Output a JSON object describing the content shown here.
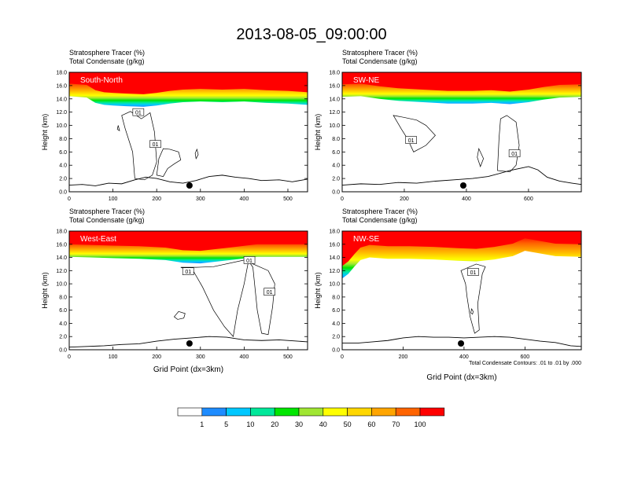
{
  "figure_title": "2013-08-05_09:00:00",
  "colorbar": {
    "colors": [
      "#ffffff",
      "#1e8cff",
      "#00c8ff",
      "#00e89a",
      "#00e600",
      "#a0e632",
      "#ffff00",
      "#ffd700",
      "#ffa500",
      "#ff6400",
      "#ff0000"
    ],
    "labels": [
      "1",
      "5",
      "10",
      "20",
      "30",
      "40",
      "50",
      "60",
      "70",
      "100"
    ]
  },
  "chart_data": [
    {
      "type": "heatmap",
      "id": "south-north",
      "title_line1": "Stratosphere Tracer   (%)",
      "title_line2": "Total Condensate   (g/kg)",
      "panel_label": "South-North",
      "ylabel": "Height (km)",
      "xlabel": "",
      "xlim": [
        0,
        545
      ],
      "ylim": [
        0,
        18
      ],
      "xticks": [
        0,
        100,
        200,
        300,
        400,
        500
      ],
      "yticks": [
        "0.0",
        "2.0",
        "4.0",
        "6.0",
        "8.0",
        "10.0",
        "12.0",
        "14.0",
        "16.0",
        "18.0"
      ],
      "marker_x": 275,
      "contour_labels": [
        {
          "text": "01",
          "x": 158,
          "y": 12.0
        },
        {
          "text": "01",
          "x": 197,
          "y": 7.2
        }
      ],
      "tropopause_profile": [
        [
          0,
          14.4
        ],
        [
          40,
          14.2
        ],
        [
          60,
          13.4
        ],
        [
          80,
          13.1
        ],
        [
          100,
          13.0
        ],
        [
          130,
          12.9
        ],
        [
          170,
          12.8
        ],
        [
          200,
          13.0
        ],
        [
          230,
          13.3
        ],
        [
          260,
          13.5
        ],
        [
          300,
          13.6
        ],
        [
          350,
          13.5
        ],
        [
          400,
          13.6
        ],
        [
          450,
          13.4
        ],
        [
          500,
          13.3
        ],
        [
          545,
          13.1
        ]
      ],
      "terrain": [
        [
          0,
          1.0
        ],
        [
          30,
          1.1
        ],
        [
          60,
          0.9
        ],
        [
          90,
          1.3
        ],
        [
          120,
          1.2
        ],
        [
          150,
          1.8
        ],
        [
          175,
          2.2
        ],
        [
          200,
          2.0
        ],
        [
          230,
          1.5
        ],
        [
          260,
          1.3
        ],
        [
          290,
          1.7
        ],
        [
          320,
          2.3
        ],
        [
          350,
          2.5
        ],
        [
          380,
          2.2
        ],
        [
          410,
          2.0
        ],
        [
          440,
          1.7
        ],
        [
          480,
          1.8
        ],
        [
          510,
          1.5
        ],
        [
          545,
          1.9
        ]
      ],
      "cloud_outlines": [
        [
          [
            150,
            2.0
          ],
          [
            145,
            6.0
          ],
          [
            128,
            9.5
          ],
          [
            120,
            11.5
          ],
          [
            140,
            12.1
          ],
          [
            165,
            11.0
          ],
          [
            185,
            11.9
          ],
          [
            195,
            9.0
          ],
          [
            200,
            4.5
          ],
          [
            190,
            2.5
          ],
          [
            172,
            1.8
          ]
        ],
        [
          [
            200,
            2.5
          ],
          [
            205,
            5.0
          ],
          [
            215,
            6.5
          ],
          [
            230,
            6.4
          ],
          [
            250,
            6.0
          ],
          [
            255,
            4.8
          ],
          [
            240,
            4.2
          ],
          [
            225,
            3.5
          ],
          [
            215,
            2.3
          ]
        ],
        [
          [
            112,
            10.0
          ],
          [
            115,
            9.2
          ],
          [
            110,
            9.4
          ]
        ],
        [
          [
            292,
            6.4
          ],
          [
            295,
            5.6
          ],
          [
            290,
            5.0
          ],
          [
            288,
            5.8
          ]
        ]
      ]
    },
    {
      "type": "heatmap",
      "id": "sw-ne",
      "title_line1": "Stratosphere Tracer   (%)",
      "title_line2": "Total Condensate   (g/kg)",
      "panel_label": "SW-NE",
      "ylabel": "Height (km)",
      "xlabel": "",
      "xlim": [
        0,
        770
      ],
      "ylim": [
        0,
        18
      ],
      "xticks": [
        0,
        200,
        400,
        600
      ],
      "yticks": [
        "0.0",
        "2.0",
        "4.0",
        "6.0",
        "8.0",
        "10.0",
        "12.0",
        "14.0",
        "16.0",
        "18.0"
      ],
      "marker_x": 390,
      "contour_labels": [
        {
          "text": "01",
          "x": 222,
          "y": 7.8
        },
        {
          "text": "01",
          "x": 555,
          "y": 5.8
        }
      ],
      "tropopause_profile": [
        [
          0,
          14.3
        ],
        [
          60,
          14.4
        ],
        [
          120,
          14.0
        ],
        [
          180,
          13.7
        ],
        [
          260,
          13.5
        ],
        [
          340,
          13.3
        ],
        [
          420,
          13.3
        ],
        [
          480,
          13.4
        ],
        [
          540,
          13.2
        ],
        [
          600,
          13.5
        ],
        [
          650,
          13.9
        ],
        [
          700,
          14.2
        ],
        [
          770,
          14.3
        ]
      ],
      "terrain": [
        [
          0,
          1.0
        ],
        [
          60,
          1.2
        ],
        [
          120,
          1.1
        ],
        [
          180,
          1.4
        ],
        [
          240,
          1.3
        ],
        [
          300,
          1.6
        ],
        [
          360,
          1.8
        ],
        [
          420,
          2.0
        ],
        [
          470,
          2.3
        ],
        [
          510,
          2.8
        ],
        [
          540,
          3.2
        ],
        [
          570,
          3.5
        ],
        [
          600,
          3.8
        ],
        [
          630,
          3.3
        ],
        [
          660,
          2.2
        ],
        [
          700,
          1.6
        ],
        [
          740,
          1.3
        ],
        [
          770,
          1.1
        ]
      ],
      "cloud_outlines": [
        [
          [
            165,
            11.5
          ],
          [
            190,
            9.5
          ],
          [
            210,
            8.0
          ],
          [
            230,
            6.0
          ],
          [
            270,
            7.0
          ],
          [
            300,
            8.5
          ],
          [
            270,
            10.0
          ],
          [
            240,
            10.8
          ],
          [
            200,
            11.2
          ]
        ],
        [
          [
            500,
            3.2
          ],
          [
            505,
            8.0
          ],
          [
            510,
            11.0
          ],
          [
            530,
            11.5
          ],
          [
            560,
            10.5
          ],
          [
            570,
            7.0
          ],
          [
            560,
            4.0
          ],
          [
            540,
            3.0
          ]
        ],
        [
          [
            440,
            6.5
          ],
          [
            455,
            5.0
          ],
          [
            445,
            3.8
          ],
          [
            435,
            5.2
          ]
        ]
      ]
    },
    {
      "type": "heatmap",
      "id": "west-east",
      "title_line1": "Stratosphere Tracer   (%)",
      "title_line2": "Total Condensate   (g/kg)",
      "panel_label": "West-East",
      "ylabel": "Height (km)",
      "xlabel": "Grid Point (dx=3km)",
      "xlim": [
        0,
        545
      ],
      "ylim": [
        0,
        18
      ],
      "xticks": [
        0,
        100,
        200,
        300,
        400,
        500
      ],
      "yticks": [
        "0.0",
        "2.0",
        "4.0",
        "6.0",
        "8.0",
        "10.0",
        "12.0",
        "14.0",
        "16.0",
        "18.0"
      ],
      "marker_x": 275,
      "contour_labels": [
        {
          "text": "01",
          "x": 272,
          "y": 11.9
        },
        {
          "text": "01",
          "x": 412,
          "y": 13.6
        },
        {
          "text": "01",
          "x": 458,
          "y": 8.8
        }
      ],
      "tropopause_profile": [
        [
          0,
          14.1
        ],
        [
          50,
          14.0
        ],
        [
          100,
          13.9
        ],
        [
          160,
          13.8
        ],
        [
          220,
          13.6
        ],
        [
          260,
          13.2
        ],
        [
          300,
          13.1
        ],
        [
          340,
          13.4
        ],
        [
          380,
          13.7
        ],
        [
          430,
          14.1
        ],
        [
          480,
          14.1
        ],
        [
          545,
          14.1
        ]
      ],
      "terrain": [
        [
          0,
          0.4
        ],
        [
          40,
          0.5
        ],
        [
          80,
          0.6
        ],
        [
          120,
          0.8
        ],
        [
          160,
          0.9
        ],
        [
          200,
          1.3
        ],
        [
          240,
          1.6
        ],
        [
          280,
          1.8
        ],
        [
          320,
          2.0
        ],
        [
          360,
          1.9
        ],
        [
          400,
          1.5
        ],
        [
          440,
          1.4
        ],
        [
          480,
          1.5
        ],
        [
          545,
          1.2
        ]
      ],
      "cloud_outlines": [
        [
          [
            255,
            12.5
          ],
          [
            285,
            11.8
          ],
          [
            305,
            9.5
          ],
          [
            330,
            6.0
          ],
          [
            355,
            3.5
          ],
          [
            375,
            2.0
          ],
          [
            385,
            6.0
          ],
          [
            400,
            10.0
          ],
          [
            410,
            13.5
          ],
          [
            420,
            12.5
          ],
          [
            430,
            6.0
          ],
          [
            440,
            2.5
          ],
          [
            455,
            2.3
          ],
          [
            465,
            6.5
          ],
          [
            470,
            10.0
          ],
          [
            455,
            12.0
          ],
          [
            400,
            13.6
          ],
          [
            330,
            12.6
          ],
          [
            290,
            12.5
          ]
        ],
        [
          [
            250,
            5.8
          ],
          [
            265,
            5.5
          ],
          [
            262,
            4.8
          ],
          [
            248,
            4.6
          ],
          [
            240,
            5.0
          ]
        ]
      ]
    },
    {
      "type": "heatmap",
      "id": "nw-se",
      "title_line1": "Stratosphere Tracer   (%)",
      "title_line2": "Total Condensate   (g/kg)",
      "panel_label": "NW-SE",
      "ylabel": "Height (km)",
      "xlabel": "Grid Point (dx=3km)",
      "xlim": [
        0,
        785
      ],
      "ylim": [
        0,
        18
      ],
      "xticks": [
        0,
        200,
        400,
        600
      ],
      "yticks": [
        "0.0",
        "2.0",
        "4.0",
        "6.0",
        "8.0",
        "10.0",
        "12.0",
        "14.0",
        "16.0",
        "18.0"
      ],
      "marker_x": 390,
      "footnote": "Total Condensate Contours: .01 to .01 by .000",
      "contour_labels": [
        {
          "text": "01",
          "x": 430,
          "y": 11.8
        }
      ],
      "tropopause_profile": [
        [
          0,
          10.8
        ],
        [
          20,
          11.5
        ],
        [
          40,
          12.6
        ],
        [
          60,
          13.6
        ],
        [
          90,
          14.0
        ],
        [
          150,
          13.8
        ],
        [
          220,
          13.8
        ],
        [
          300,
          13.7
        ],
        [
          380,
          13.5
        ],
        [
          440,
          13.4
        ],
        [
          500,
          13.7
        ],
        [
          560,
          14.2
        ],
        [
          600,
          15.0
        ],
        [
          650,
          14.6
        ],
        [
          700,
          14.2
        ],
        [
          785,
          14.1
        ]
      ],
      "terrain": [
        [
          0,
          1.0
        ],
        [
          50,
          1.0
        ],
        [
          100,
          1.2
        ],
        [
          150,
          1.4
        ],
        [
          200,
          1.8
        ],
        [
          250,
          2.0
        ],
        [
          300,
          1.9
        ],
        [
          350,
          1.9
        ],
        [
          400,
          1.8
        ],
        [
          450,
          1.9
        ],
        [
          500,
          2.0
        ],
        [
          550,
          1.9
        ],
        [
          600,
          1.6
        ],
        [
          650,
          1.3
        ],
        [
          700,
          1.1
        ],
        [
          750,
          0.6
        ],
        [
          785,
          0.5
        ]
      ],
      "cloud_outlines": [
        [
          [
            390,
            12.0
          ],
          [
            405,
            10.0
          ],
          [
            410,
            8.0
          ],
          [
            420,
            5.0
          ],
          [
            435,
            2.5
          ],
          [
            450,
            3.0
          ],
          [
            445,
            7.0
          ],
          [
            460,
            11.5
          ],
          [
            470,
            12.6
          ],
          [
            440,
            13.0
          ]
        ],
        [
          [
            425,
            6.2
          ],
          [
            430,
            5.8
          ],
          [
            428,
            5.4
          ],
          [
            422,
            5.6
          ]
        ]
      ]
    }
  ]
}
